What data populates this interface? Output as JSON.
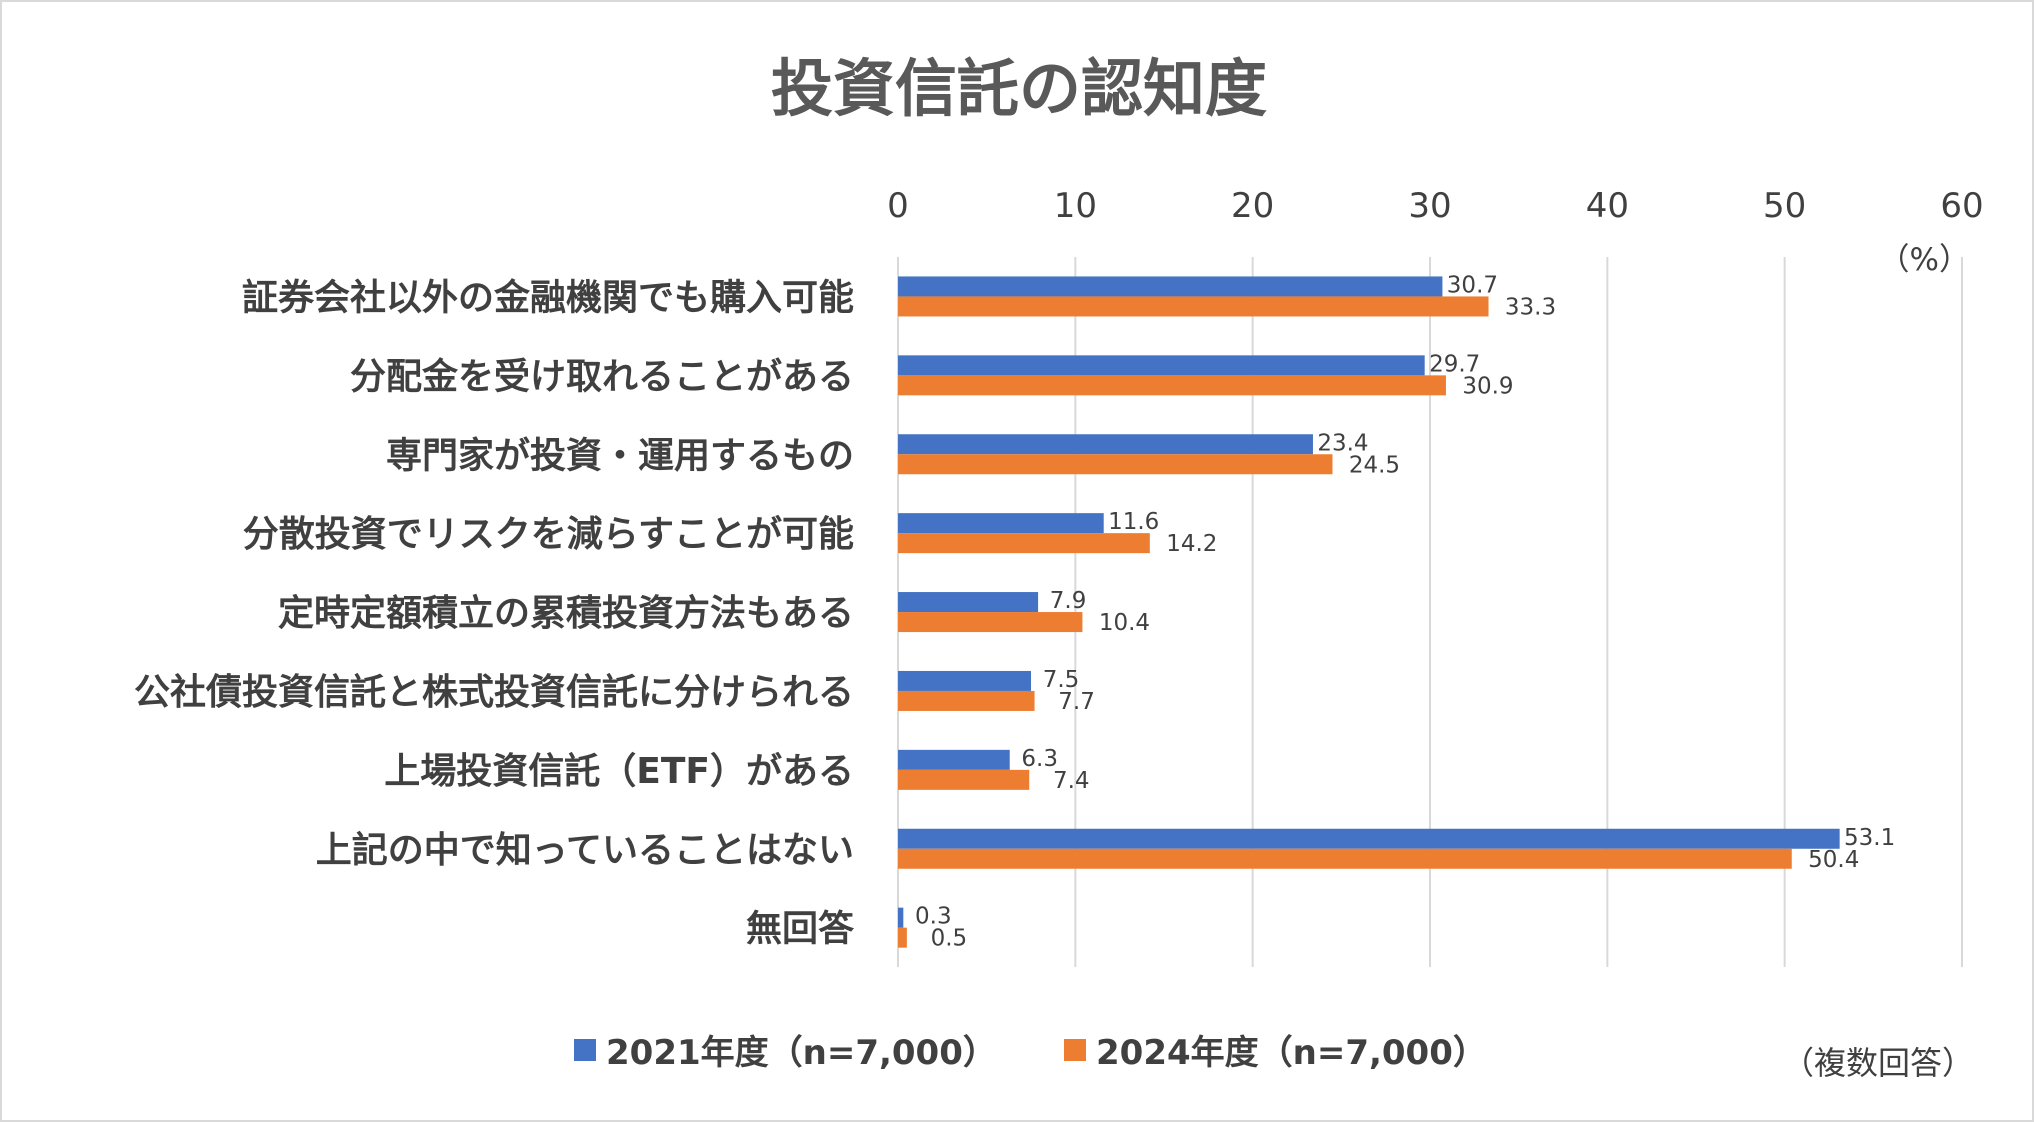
{
  "chart_data": {
    "type": "bar",
    "orientation": "horizontal",
    "title": "投資信託の認知度",
    "unit_label": "（%）",
    "note": "（複数回答）",
    "xlim": [
      0,
      60
    ],
    "x_ticks": [
      "0",
      "10",
      "20",
      "30",
      "40",
      "50",
      "60"
    ],
    "grid": true,
    "legend_position": "bottom",
    "categories": [
      "証券会社以外の金融機関でも購入可能",
      "分配金を受け取れることがある",
      "専門家が投資・運用するもの",
      "分散投資でリスクを減らすことが可能",
      "定時定額積立の累積投資方法もある",
      "公社債投資信託と株式投資信託に分けられる",
      "上場投資信託（ETF）がある",
      "上記の中で知っていることはない",
      "無回答"
    ],
    "series": [
      {
        "name": "2021年度（n=7,000）",
        "color": "#4472c4",
        "values": [
          30.7,
          29.7,
          23.4,
          11.6,
          7.9,
          7.5,
          6.3,
          53.1,
          0.3
        ],
        "labels": [
          "30.7",
          "29.7",
          "23.4",
          "11.6",
          "7.9",
          "7.5",
          "6.3",
          "53.1",
          "0.3"
        ]
      },
      {
        "name": "2024年度（n=7,000）",
        "color": "#ed7d31",
        "values": [
          33.3,
          30.9,
          24.5,
          14.2,
          10.4,
          7.7,
          7.4,
          50.4,
          0.5
        ],
        "labels": [
          "33.3",
          "30.9",
          "24.5",
          "14.2",
          "10.4",
          "7.7",
          "7.4",
          "50.4",
          "0.5"
        ]
      }
    ]
  }
}
